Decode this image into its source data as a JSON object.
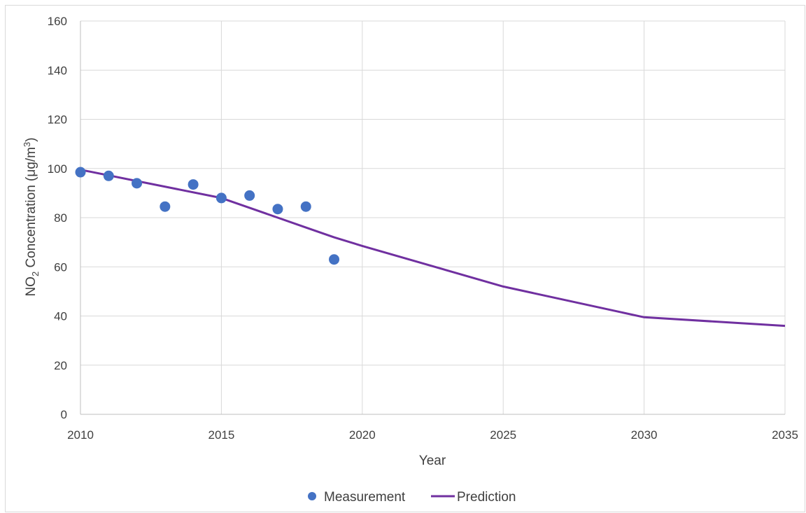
{
  "chart_data": {
    "type": "scatter",
    "title": "",
    "xlabel": "Year",
    "ylabel": {
      "prefix": "NO",
      "sub": "2",
      "middle": " Concentration (μg/m",
      "sup": "3",
      "suffix": ")"
    },
    "xlim": [
      2010,
      2035
    ],
    "ylim": [
      0,
      160
    ],
    "x_ticks": [
      2010,
      2015,
      2020,
      2025,
      2030,
      2035
    ],
    "y_ticks": [
      0,
      20,
      40,
      60,
      80,
      100,
      120,
      140,
      160
    ],
    "grid": true,
    "legend_position": "bottom",
    "series": [
      {
        "name": "Measurement",
        "type": "scatter",
        "color": "#4472C4",
        "x": [
          2010,
          2011,
          2012,
          2013,
          2014,
          2015,
          2016,
          2017,
          2018,
          2019
        ],
        "y": [
          98.5,
          97,
          94,
          84.5,
          93.5,
          88,
          89,
          83.5,
          84.5,
          63
        ]
      },
      {
        "name": "Prediction",
        "type": "line",
        "color": "#7030A0",
        "x": [
          2010,
          2015,
          2016,
          2017,
          2018,
          2019,
          2020,
          2025,
          2030,
          2035
        ],
        "y": [
          99.5,
          88,
          84,
          80,
          76,
          72,
          68.5,
          52,
          39.5,
          36
        ]
      }
    ]
  }
}
